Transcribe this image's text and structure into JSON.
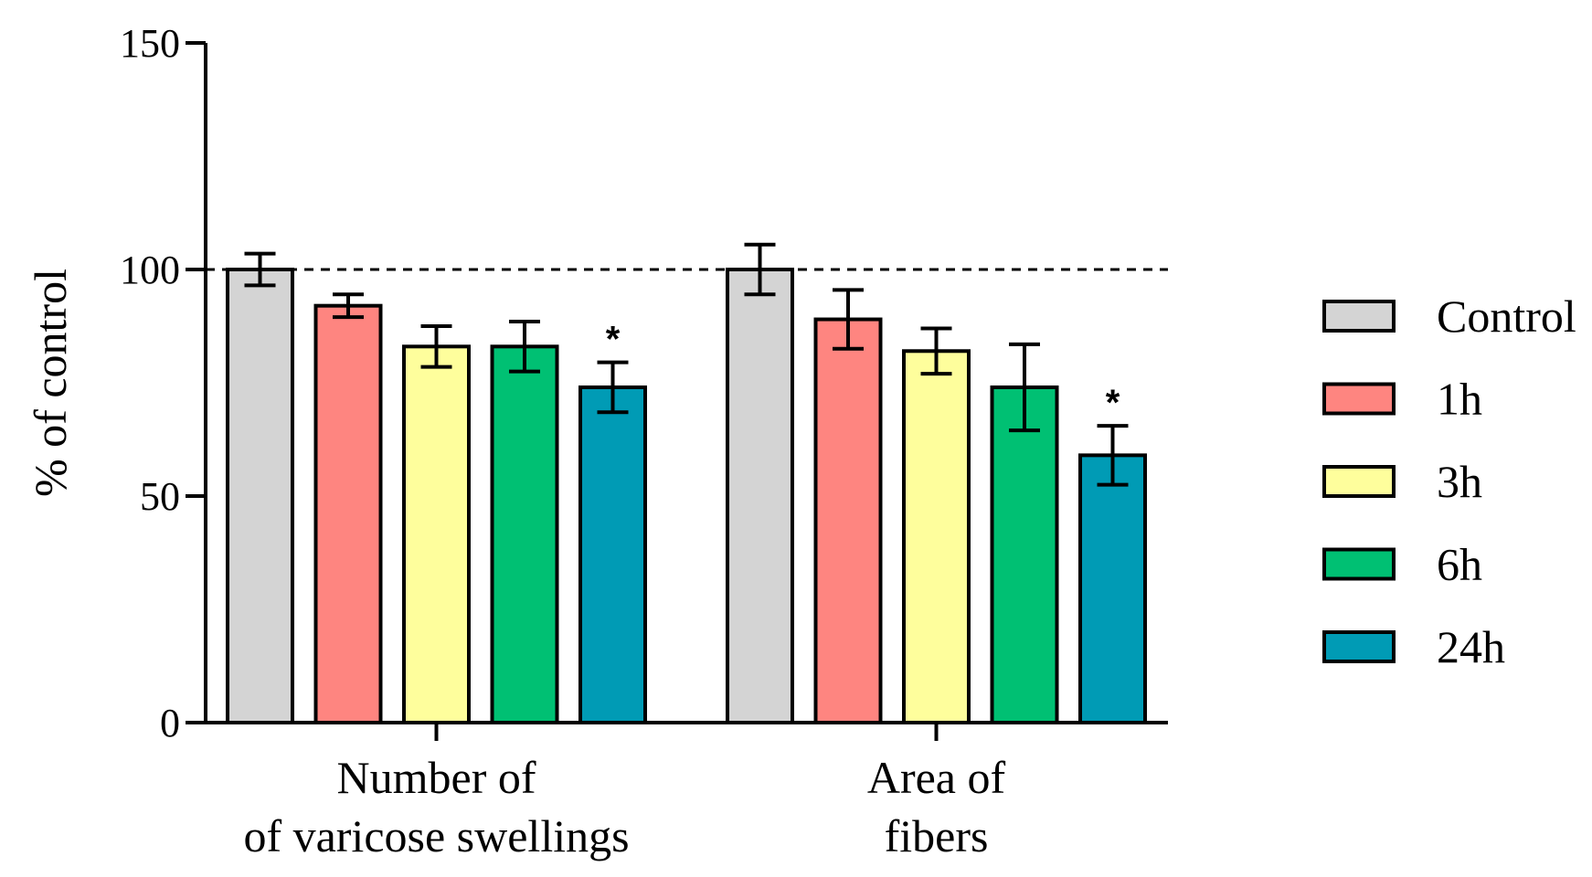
{
  "chart_data": {
    "type": "bar",
    "title": "",
    "xlabel": "",
    "ylabel": "% of control",
    "ylim": [
      0,
      150
    ],
    "yticks": [
      0,
      50,
      100,
      150
    ],
    "reference_line": 100,
    "categories": [
      {
        "line1": "Number of",
        "line2": "of varicose swellings"
      },
      {
        "line1": "Area of",
        "line2": "fibers"
      }
    ],
    "series": [
      {
        "name": "Control",
        "color": "#d4d4d4",
        "values": [
          100,
          100
        ],
        "errors": [
          3.5,
          5.5
        ],
        "significant": [
          false,
          false
        ]
      },
      {
        "name": "1h",
        "color": "#fe8580",
        "values": [
          92,
          89
        ],
        "errors": [
          2.5,
          6.5
        ],
        "significant": [
          false,
          false
        ]
      },
      {
        "name": "3h",
        "color": "#fefe9c",
        "values": [
          83,
          82
        ],
        "errors": [
          4.5,
          5
        ],
        "significant": [
          false,
          false
        ]
      },
      {
        "name": "6h",
        "color": "#00c073",
        "values": [
          83,
          74
        ],
        "errors": [
          5.5,
          9.5
        ],
        "significant": [
          false,
          false
        ]
      },
      {
        "name": "24h",
        "color": "#009bb5",
        "values": [
          74,
          59
        ],
        "errors": [
          5.5,
          6.5
        ],
        "significant": [
          true,
          true
        ]
      }
    ],
    "significance_marker": "*",
    "legend_position": "right"
  }
}
